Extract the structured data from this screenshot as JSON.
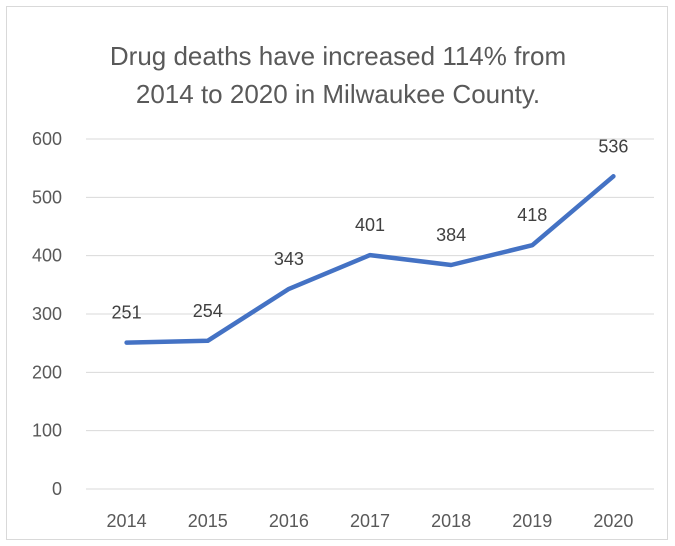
{
  "chart_data": {
    "type": "line",
    "title_lines": [
      "Drug deaths have increased 114% from",
      "2014 to 2020 in Milwaukee County."
    ],
    "xlabel": "",
    "ylabel": "",
    "categories": [
      "2014",
      "2015",
      "2016",
      "2017",
      "2018",
      "2019",
      "2020"
    ],
    "series": [
      {
        "values": [
          251,
          254,
          343,
          401,
          384,
          418,
          536
        ],
        "data_labels": [
          "251",
          "254",
          "343",
          "401",
          "384",
          "418",
          "536"
        ],
        "color": "#4472c4"
      }
    ],
    "ylim": [
      0,
      600
    ],
    "yticks": [
      0,
      100,
      200,
      300,
      400,
      500,
      600
    ],
    "ytick_labels": [
      "0",
      "100",
      "200",
      "300",
      "400",
      "500",
      "600"
    ],
    "grid": true,
    "gridline_color": "#d9d9d9",
    "legend": "none"
  }
}
